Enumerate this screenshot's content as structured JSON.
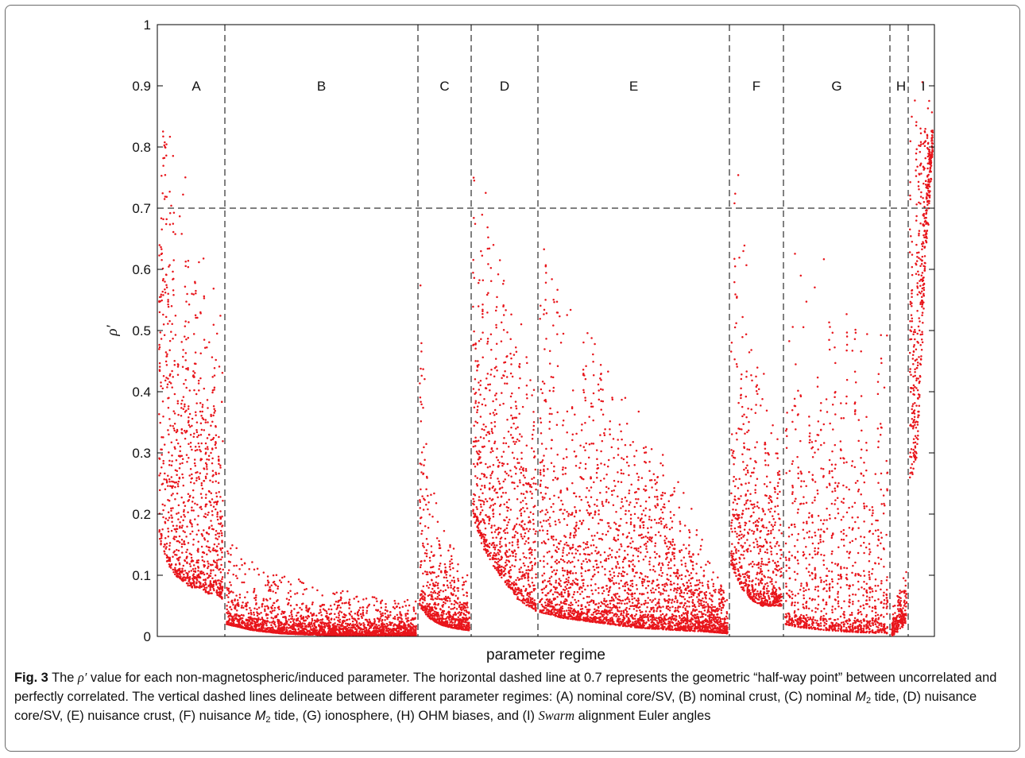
{
  "chart_data": {
    "type": "scatter",
    "title": "",
    "xlabel": "parameter regime",
    "ylabel": "ρ′",
    "ylim": [
      0,
      1
    ],
    "yticks": [
      "0",
      "0.1",
      "0.2",
      "0.3",
      "0.4",
      "0.5",
      "0.6",
      "0.7",
      "0.8",
      "0.9",
      "1"
    ],
    "grid": false,
    "marker_color": "#e8151b",
    "reference_line_color": "#000000",
    "horizontal_reference": 0.7,
    "regime_boundaries": [
      {
        "index": 1,
        "label": "A|B"
      },
      {
        "index": 2,
        "label": "B|C"
      },
      {
        "index": 3,
        "label": "C|D"
      },
      {
        "index": 4,
        "label": "D|E"
      },
      {
        "index": 5,
        "label": "E|F"
      },
      {
        "index": 6,
        "label": "F|G"
      },
      {
        "index": 7,
        "label": "G|H"
      },
      {
        "index": 8,
        "label": "H|I"
      }
    ],
    "regimes": [
      {
        "label": "A",
        "upper_envelope": [
          0.9,
          0.85,
          0.8,
          0.78,
          0.72,
          0.66,
          0.62,
          0.6,
          0.56
        ],
        "lower_envelope": [
          0.16,
          0.12,
          0.1,
          0.09,
          0.08,
          0.08,
          0.07,
          0.07,
          0.06
        ]
      },
      {
        "label": "B",
        "upper_envelope": [
          0.16,
          0.12,
          0.1,
          0.09,
          0.08,
          0.07,
          0.06,
          0.06
        ],
        "lower_envelope": [
          0.02,
          0.01,
          0.005,
          0.003,
          0.002,
          0.002,
          0.002,
          0.002
        ]
      },
      {
        "label": "C",
        "upper_envelope": [
          0.6,
          0.3,
          0.2,
          0.16,
          0.13,
          0.1
        ],
        "lower_envelope": [
          0.05,
          0.03,
          0.02,
          0.015,
          0.012,
          0.01
        ]
      },
      {
        "label": "D",
        "upper_envelope": [
          0.86,
          0.78,
          0.7,
          0.62,
          0.56,
          0.52,
          0.5,
          0.45
        ],
        "lower_envelope": [
          0.2,
          0.15,
          0.12,
          0.1,
          0.08,
          0.06,
          0.05,
          0.04
        ]
      },
      {
        "label": "E",
        "upper_envelope": [
          0.66,
          0.58,
          0.5,
          0.44,
          0.38,
          0.32,
          0.26,
          0.15,
          0.06
        ],
        "lower_envelope": [
          0.04,
          0.03,
          0.025,
          0.02,
          0.015,
          0.012,
          0.01,
          0.008,
          0.005
        ]
      },
      {
        "label": "F",
        "upper_envelope": [
          0.9,
          0.7,
          0.55,
          0.45,
          0.38,
          0.32
        ],
        "lower_envelope": [
          0.12,
          0.08,
          0.06,
          0.05,
          0.05,
          0.05
        ]
      },
      {
        "label": "G",
        "upper_envelope": [
          0.67,
          0.66,
          0.65,
          0.63,
          0.61,
          0.58,
          0.55,
          0.5
        ],
        "lower_envelope": [
          0.02,
          0.015,
          0.012,
          0.01,
          0.008,
          0.007,
          0.006,
          0.005
        ]
      },
      {
        "label": "H",
        "upper_envelope": [
          0.04,
          0.12
        ],
        "lower_envelope": [
          0.0,
          0.02
        ]
      },
      {
        "label": "I",
        "upper_envelope": [
          0.93,
          0.88,
          0.93,
          0.85
        ],
        "lower_envelope": [
          0.25,
          0.3,
          0.6,
          0.8
        ]
      }
    ]
  },
  "caption": {
    "fig_label": "Fig. 3",
    "part1": "  The ",
    "rho": "ρ′",
    "part2": " value for each non-magnetospheric/induced parameter. The horizontal dashed line at 0.7 represents the geometric “half-way point” between uncorrelated and perfectly correlated. The vertical dashed lines delineate between different parameter regimes: (A) nominal core/SV, (B) nominal crust, (C) nominal ",
    "m": "M",
    "m_sub": "2",
    "part3": " tide, (D) nuisance core/SV, (E) nuisance crust, (F) nuisance ",
    "part4": " tide, (G) ionosphere, (H) OHM biases, and (I) ",
    "swarm": "Swarm",
    "part5": " alignment Euler angles"
  }
}
